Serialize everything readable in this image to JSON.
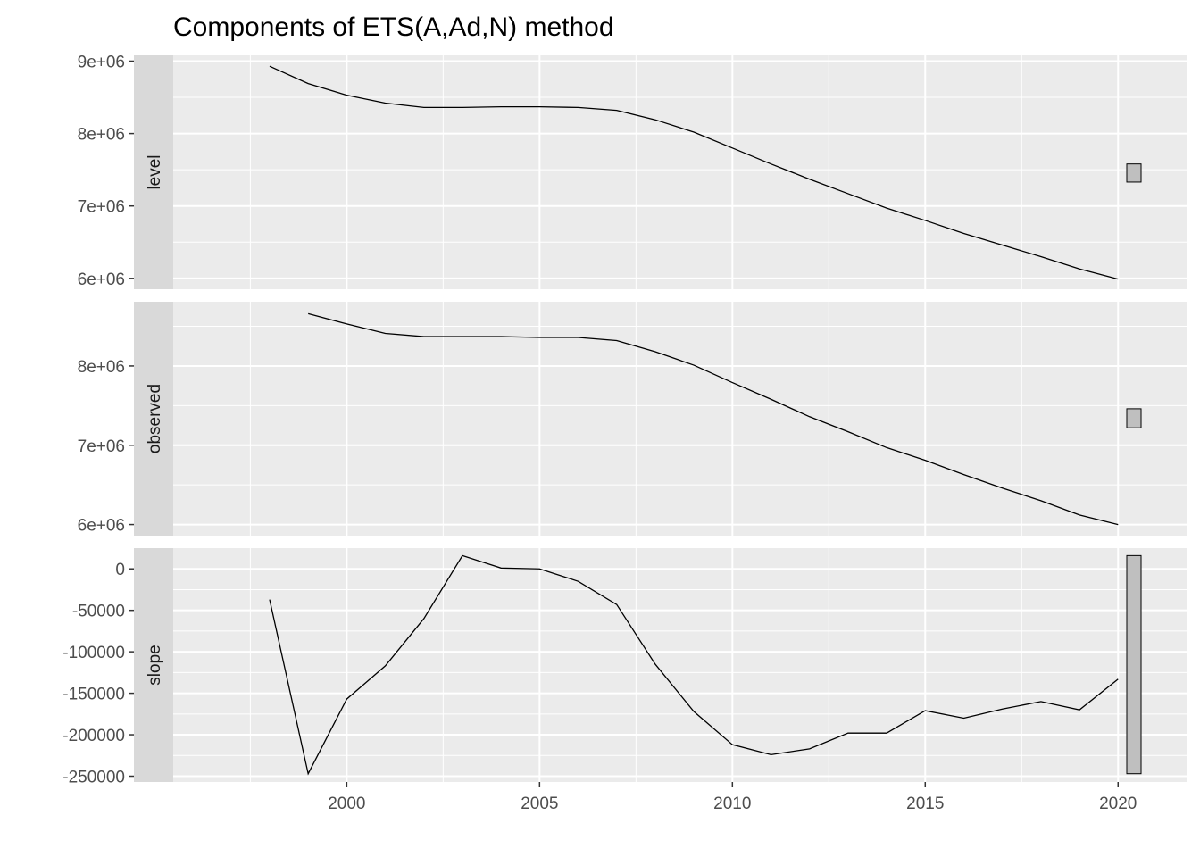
{
  "chart_data": {
    "type": "line",
    "title": "Components of ETS(A,Ad,N) method",
    "xlabel": "",
    "ylabel": "",
    "x_ticks": [
      "2000",
      "2005",
      "2010",
      "2015",
      "2020"
    ],
    "xlim": [
      1995.5,
      2021.8
    ],
    "grid": true,
    "colors": {
      "panel_bg": "#ebebeb",
      "strip_bg": "#d9d9d9",
      "grid": "#ffffff",
      "line": "#000000",
      "range_bar": "#bfbfbf"
    },
    "panels": [
      {
        "strip_label": "level",
        "ylim": [
          5850000,
          9080000
        ],
        "y_ticks": [
          6000000,
          7000000,
          8000000,
          9000000
        ],
        "y_tick_labels": [
          "6e+06",
          "7e+06",
          "8e+06",
          "9e+06"
        ],
        "x": [
          1998,
          1999,
          2000,
          2001,
          2002,
          2003,
          2004,
          2005,
          2006,
          2007,
          2008,
          2009,
          2010,
          2011,
          2012,
          2013,
          2014,
          2015,
          2016,
          2017,
          2018,
          2019,
          2020
        ],
        "values": [
          8930000,
          8690000,
          8530000,
          8420000,
          8360000,
          8360000,
          8370000,
          8370000,
          8360000,
          8320000,
          8190000,
          8020000,
          7800000,
          7580000,
          7370000,
          7170000,
          6970000,
          6800000,
          6620000,
          6460000,
          6300000,
          6130000,
          5990000
        ],
        "range_bar": [
          7330000,
          7580000
        ]
      },
      {
        "strip_label": "observed",
        "ylim": [
          5860000,
          8810000
        ],
        "y_ticks": [
          6000000,
          7000000,
          8000000
        ],
        "y_tick_labels": [
          "6e+06",
          "7e+06",
          "8e+06"
        ],
        "x": [
          1999,
          2000,
          2001,
          2002,
          2003,
          2004,
          2005,
          2006,
          2007,
          2008,
          2009,
          2010,
          2011,
          2012,
          2013,
          2014,
          2015,
          2016,
          2017,
          2018,
          2019,
          2020
        ],
        "values": [
          8660000,
          8530000,
          8410000,
          8370000,
          8370000,
          8370000,
          8360000,
          8360000,
          8320000,
          8180000,
          8010000,
          7790000,
          7580000,
          7360000,
          7170000,
          6970000,
          6810000,
          6630000,
          6460000,
          6300000,
          6120000,
          6000000
        ],
        "range_bar": [
          7220000,
          7460000
        ]
      },
      {
        "strip_label": "slope",
        "ylim": [
          -257000,
          25000
        ],
        "y_ticks": [
          -250000,
          -200000,
          -150000,
          -100000,
          -50000,
          0
        ],
        "y_tick_labels": [
          "-250000",
          "-200000",
          "-150000",
          "-100000",
          "-50000",
          "0"
        ],
        "x": [
          1998,
          1999,
          2000,
          2001,
          2002,
          2003,
          2004,
          2005,
          2006,
          2007,
          2008,
          2009,
          2010,
          2011,
          2012,
          2013,
          2014,
          2015,
          2016,
          2017,
          2018,
          2019,
          2020
        ],
        "values": [
          -37000,
          -247000,
          -157000,
          -117000,
          -60000,
          16000,
          1000,
          0,
          -15000,
          -43000,
          -115000,
          -172000,
          -212000,
          -224000,
          -217000,
          -198000,
          -198000,
          -171000,
          -180000,
          -169000,
          -160000,
          -170000,
          -133000
        ],
        "range_bar": [
          -247000,
          16000
        ]
      }
    ]
  }
}
